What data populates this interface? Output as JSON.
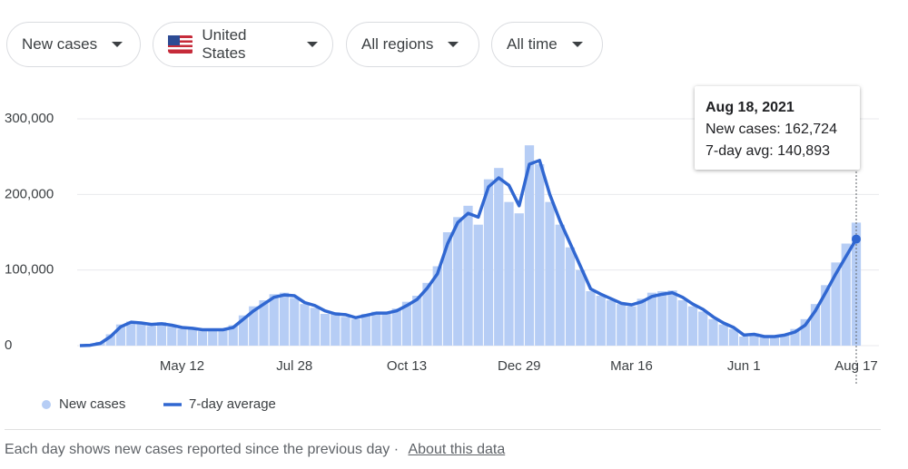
{
  "filters": [
    "New cases",
    "United States",
    "All regions",
    "All time"
  ],
  "chart_data": {
    "type": "bar-line",
    "categories": [
      null,
      null,
      null,
      null,
      null,
      null,
      null,
      null,
      null,
      null,
      "May 12",
      null,
      null,
      null,
      null,
      null,
      null,
      null,
      null,
      null,
      null,
      "Jul 28",
      null,
      null,
      null,
      null,
      null,
      null,
      null,
      null,
      null,
      null,
      "Oct 13",
      null,
      null,
      null,
      null,
      null,
      null,
      null,
      null,
      null,
      null,
      "Dec 29",
      null,
      null,
      null,
      null,
      null,
      null,
      null,
      null,
      null,
      null,
      "Mar 16",
      null,
      null,
      null,
      null,
      null,
      null,
      null,
      null,
      null,
      null,
      "Jun 1",
      null,
      null,
      null,
      null,
      null,
      null,
      null,
      null,
      null,
      null,
      "Aug 17"
    ],
    "series": [
      {
        "name": "New cases",
        "color": "#b6cdf5",
        "values": [
          0,
          1000,
          5000,
          15000,
          28000,
          32000,
          29000,
          26000,
          31000,
          25000,
          22000,
          24000,
          19000,
          20000,
          22000,
          27000,
          40000,
          52000,
          60000,
          68000,
          70000,
          63000,
          55000,
          50000,
          42000,
          44000,
          38000,
          35000,
          42000,
          45000,
          44000,
          49000,
          58000,
          66000,
          83000,
          105000,
          150000,
          170000,
          185000,
          160000,
          220000,
          235000,
          190000,
          175000,
          265000,
          240000,
          190000,
          160000,
          130000,
          100000,
          72000,
          66000,
          60000,
          55000,
          52000,
          62000,
          70000,
          72000,
          73000,
          60000,
          52000,
          45000,
          35000,
          28000,
          22000,
          12000,
          16000,
          11000,
          13000,
          15000,
          22000,
          35000,
          55000,
          80000,
          110000,
          135000,
          162724
        ]
      },
      {
        "name": "7-day average",
        "color": "#3067d1",
        "values": [
          0,
          500,
          3000,
          12000,
          25000,
          31000,
          30000,
          28000,
          29000,
          27000,
          24000,
          23000,
          21000,
          21000,
          21000,
          24000,
          35000,
          46000,
          55000,
          64000,
          67000,
          66000,
          57000,
          53000,
          46000,
          42000,
          41000,
          37000,
          40000,
          43000,
          43000,
          46000,
          53000,
          61000,
          76000,
          95000,
          135000,
          163000,
          175000,
          170000,
          210000,
          222000,
          212000,
          185000,
          240000,
          245000,
          200000,
          165000,
          135000,
          105000,
          75000,
          68000,
          62000,
          56000,
          54000,
          58000,
          65000,
          68000,
          70000,
          64000,
          55000,
          48000,
          38000,
          30000,
          24000,
          14000,
          15000,
          12000,
          12000,
          14000,
          18000,
          27000,
          46000,
          70000,
          95000,
          118000,
          140893
        ]
      }
    ],
    "ylim": [
      0,
      300000
    ],
    "yticks": [
      0,
      {
        "value": 100000,
        "label": "100,000"
      },
      {
        "value": 200000,
        "label": "200,000"
      },
      {
        "value": 300000,
        "label": "300,000"
      }
    ],
    "grid": true,
    "legend": "bottom-left"
  },
  "tooltip": {
    "title": "Aug 18, 2021",
    "lines": [
      "New cases: 162,724",
      "7-day avg: 140,893"
    ]
  },
  "footer": {
    "note": "Each day shows new cases reported since the previous day",
    "separator": "·",
    "link": "About this data"
  }
}
